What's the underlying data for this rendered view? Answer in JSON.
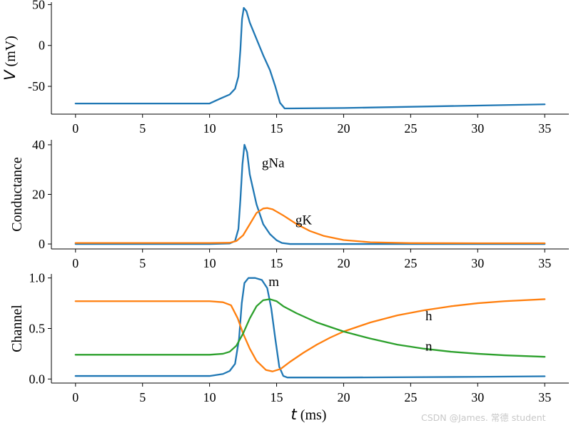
{
  "watermark": "CSDN @James. 常德 student",
  "chart_data": [
    {
      "type": "line",
      "ylabel_symbol": "V",
      "ylabel_unit": "(mV)",
      "xlim": [
        -1.8,
        36.8
      ],
      "ylim": [
        -84,
        53
      ],
      "xticks": [
        0,
        5,
        10,
        15,
        20,
        25,
        30,
        35
      ],
      "yticks": [
        50,
        0,
        -50
      ],
      "ytick_labels": [
        "50",
        "0",
        "-50"
      ],
      "series": [
        {
          "color": "#1f77b4",
          "points": [
            [
              0,
              -71
            ],
            [
              10,
              -71
            ],
            [
              10.8,
              -65
            ],
            [
              11.5,
              -60
            ],
            [
              11.9,
              -53
            ],
            [
              12.15,
              -38
            ],
            [
              12.3,
              -5
            ],
            [
              12.42,
              32
            ],
            [
              12.55,
              46
            ],
            [
              12.75,
              42
            ],
            [
              13.0,
              28
            ],
            [
              13.5,
              8
            ],
            [
              14.0,
              -12
            ],
            [
              14.5,
              -30
            ],
            [
              14.9,
              -50
            ],
            [
              15.25,
              -70
            ],
            [
              15.6,
              -77
            ],
            [
              16,
              -77
            ],
            [
              20,
              -76.5
            ],
            [
              25,
              -75
            ],
            [
              30,
              -73.5
            ],
            [
              35,
              -72
            ]
          ]
        }
      ]
    },
    {
      "type": "line",
      "ylabel": "Conductance",
      "xlim": [
        -1.8,
        36.8
      ],
      "ylim": [
        -2,
        42
      ],
      "xticks": [
        0,
        5,
        10,
        15,
        20,
        25,
        30,
        35
      ],
      "yticks": [
        0,
        20,
        40
      ],
      "ytick_labels": [
        "0",
        "20",
        "40"
      ],
      "series": [
        {
          "name": "gNa",
          "color": "#1f77b4",
          "points": [
            [
              0,
              0
            ],
            [
              10,
              0
            ],
            [
              11.5,
              0.2
            ],
            [
              11.9,
              1.2
            ],
            [
              12.15,
              6
            ],
            [
              12.3,
              18
            ],
            [
              12.45,
              32
            ],
            [
              12.6,
              40
            ],
            [
              12.8,
              37
            ],
            [
              13.0,
              28
            ],
            [
              13.5,
              16
            ],
            [
              14.0,
              8
            ],
            [
              14.5,
              4
            ],
            [
              15.0,
              1.5
            ],
            [
              15.4,
              0.4
            ],
            [
              16,
              0
            ],
            [
              35,
              0
            ]
          ]
        },
        {
          "name": "gK",
          "color": "#ff7f0e",
          "points": [
            [
              0,
              0.4
            ],
            [
              10,
              0.4
            ],
            [
              11.5,
              0.5
            ],
            [
              12.0,
              1.2
            ],
            [
              12.5,
              3.5
            ],
            [
              13.0,
              8
            ],
            [
              13.5,
              12.5
            ],
            [
              14.0,
              14.3
            ],
            [
              14.3,
              14.5
            ],
            [
              14.7,
              14
            ],
            [
              15.5,
              11.5
            ],
            [
              16.5,
              8
            ],
            [
              17.5,
              5.2
            ],
            [
              18.5,
              3.3
            ],
            [
              20,
              1.6
            ],
            [
              22,
              0.7
            ],
            [
              25,
              0.35
            ],
            [
              30,
              0.3
            ],
            [
              35,
              0.3
            ]
          ]
        }
      ]
    },
    {
      "type": "line",
      "ylabel": "Channel",
      "xlabel_symbol": "t",
      "xlabel_unit": "(ms)",
      "xlim": [
        -1.8,
        36.8
      ],
      "ylim": [
        -0.04,
        1.04
      ],
      "xticks": [
        0,
        5,
        10,
        15,
        20,
        25,
        30,
        35
      ],
      "yticks": [
        0.0,
        0.5,
        1.0
      ],
      "ytick_labels": [
        "0.0",
        "0.5",
        "1.0"
      ],
      "series": [
        {
          "name": "m",
          "color": "#1f77b4",
          "points": [
            [
              0,
              0.03
            ],
            [
              10,
              0.03
            ],
            [
              11,
              0.05
            ],
            [
              11.5,
              0.08
            ],
            [
              11.9,
              0.15
            ],
            [
              12.2,
              0.4
            ],
            [
              12.4,
              0.75
            ],
            [
              12.6,
              0.95
            ],
            [
              12.9,
              1.0
            ],
            [
              13.4,
              1.0
            ],
            [
              13.9,
              0.98
            ],
            [
              14.3,
              0.9
            ],
            [
              14.6,
              0.7
            ],
            [
              14.9,
              0.4
            ],
            [
              15.2,
              0.12
            ],
            [
              15.5,
              0.03
            ],
            [
              15.8,
              0.015
            ],
            [
              20,
              0.015
            ],
            [
              25,
              0.018
            ],
            [
              30,
              0.022
            ],
            [
              35,
              0.027
            ]
          ]
        },
        {
          "name": "h",
          "color": "#ff7f0e",
          "points": [
            [
              0,
              0.77
            ],
            [
              10,
              0.77
            ],
            [
              11,
              0.76
            ],
            [
              11.6,
              0.73
            ],
            [
              12.1,
              0.6
            ],
            [
              12.5,
              0.45
            ],
            [
              13,
              0.3
            ],
            [
              13.5,
              0.18
            ],
            [
              14.2,
              0.09
            ],
            [
              14.7,
              0.075
            ],
            [
              15.3,
              0.1
            ],
            [
              16,
              0.17
            ],
            [
              17,
              0.26
            ],
            [
              18,
              0.34
            ],
            [
              19,
              0.41
            ],
            [
              20,
              0.47
            ],
            [
              22,
              0.56
            ],
            [
              24,
              0.63
            ],
            [
              26,
              0.68
            ],
            [
              28,
              0.72
            ],
            [
              30,
              0.75
            ],
            [
              32,
              0.77
            ],
            [
              35,
              0.79
            ]
          ]
        },
        {
          "name": "n",
          "color": "#2ca02c",
          "points": [
            [
              0,
              0.24
            ],
            [
              10,
              0.24
            ],
            [
              11,
              0.25
            ],
            [
              11.5,
              0.27
            ],
            [
              12,
              0.33
            ],
            [
              12.5,
              0.45
            ],
            [
              13,
              0.6
            ],
            [
              13.5,
              0.72
            ],
            [
              14,
              0.78
            ],
            [
              14.5,
              0.79
            ],
            [
              15,
              0.77
            ],
            [
              15.5,
              0.72
            ],
            [
              16.5,
              0.65
            ],
            [
              18,
              0.56
            ],
            [
              20,
              0.47
            ],
            [
              22,
              0.4
            ],
            [
              24,
              0.34
            ],
            [
              26,
              0.3
            ],
            [
              28,
              0.27
            ],
            [
              30,
              0.25
            ],
            [
              32,
              0.235
            ],
            [
              35,
              0.22
            ]
          ]
        }
      ]
    }
  ]
}
